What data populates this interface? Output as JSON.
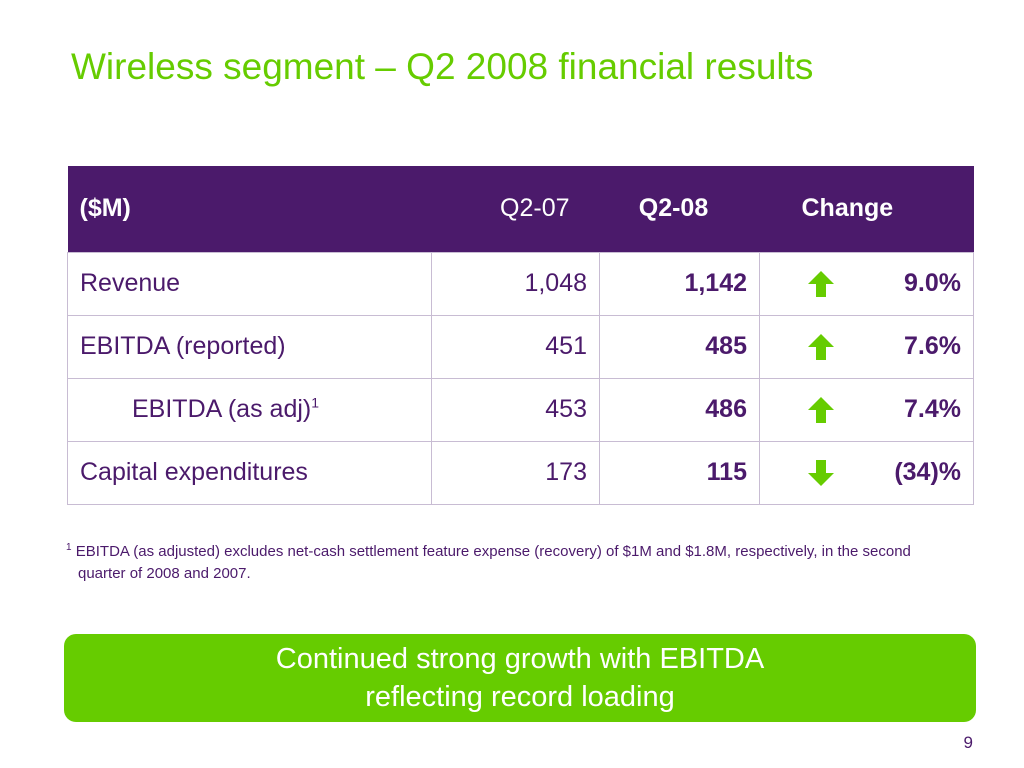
{
  "slide": {
    "title": "Wireless segment – Q2 2008 financial results",
    "page_number": "9"
  },
  "table": {
    "headers": {
      "label": "($M)",
      "prev": "Q2-07",
      "cur": "Q2-08",
      "change": "Change"
    },
    "rows": [
      {
        "label": "Revenue",
        "sup": "",
        "prev": "1,048",
        "cur": "1,142",
        "direction": "up",
        "change": "9.0%"
      },
      {
        "label": "EBITDA (reported)",
        "sup": "",
        "prev": "451",
        "cur": "485",
        "direction": "up",
        "change": "7.6%"
      },
      {
        "label": "EBITDA (as adj)",
        "sup": "1",
        "prev": "453",
        "cur": "486",
        "direction": "up",
        "change": "7.4%"
      },
      {
        "label": "Capital expenditures",
        "sup": "",
        "prev": "173",
        "cur": "115",
        "direction": "down",
        "change": "(34)%"
      }
    ]
  },
  "footnote": {
    "marker": "1",
    "text": "EBITDA (as adjusted) excludes net-cash settlement feature expense (recovery) of $1M and $1.8M, respectively, in the second quarter of 2008 and 2007."
  },
  "banner": {
    "line1": "Continued strong growth with EBITDA",
    "line2": "reflecting record loading"
  },
  "colors": {
    "brand_purple": "#4b1a6b",
    "brand_green": "#66cc00"
  }
}
